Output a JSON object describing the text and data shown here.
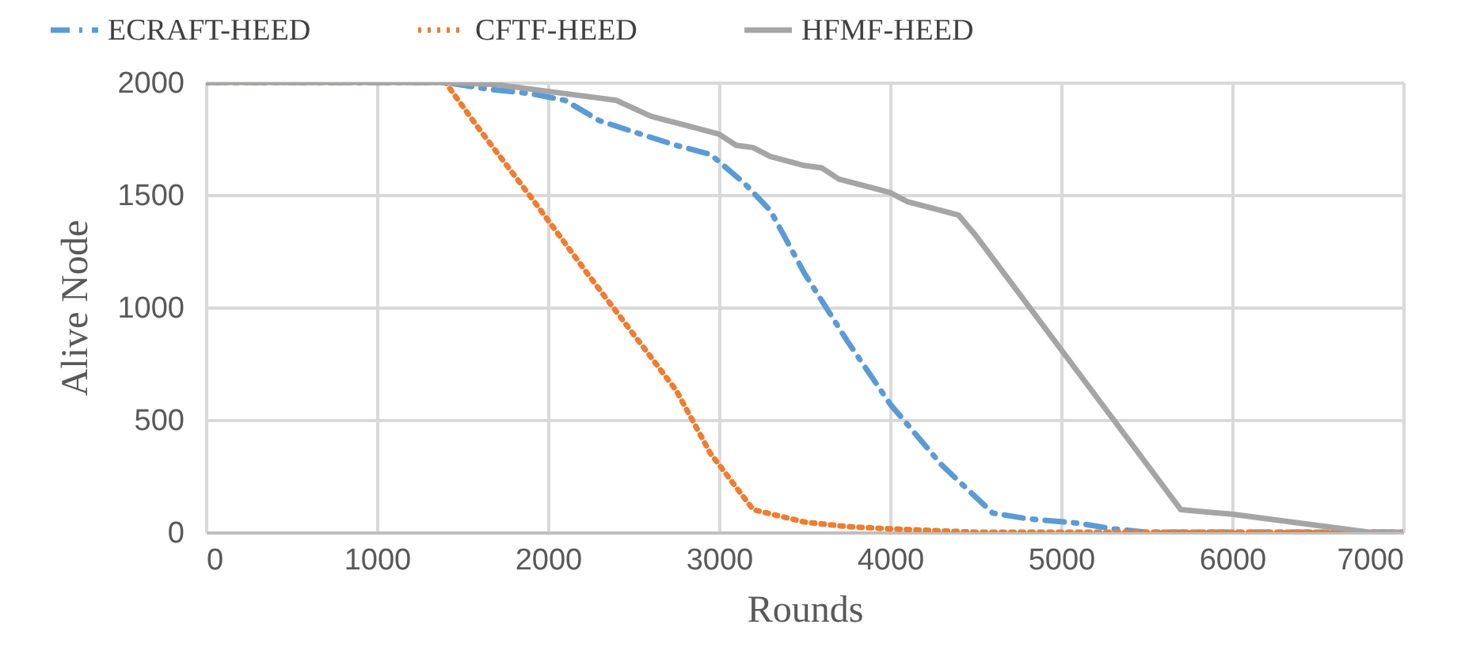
{
  "chart_data": {
    "type": "line",
    "xlabel": "Rounds",
    "ylabel": "Alive Node",
    "xlim": [
      0,
      7000
    ],
    "xticks": [
      0,
      1000,
      2000,
      3000,
      4000,
      5000,
      6000,
      7000
    ],
    "ylim": [
      0,
      2000
    ],
    "yticks": [
      0,
      500,
      1000,
      1500,
      2000
    ],
    "grid": true,
    "legend": "top",
    "marker": "none",
    "series": [
      {
        "name": "ECRAFT-HEED",
        "color": "#5b9bd5",
        "line_style": "dashed",
        "x": [
          0,
          1400,
          1650,
          1900,
          2100,
          2300,
          2500,
          2750,
          2950,
          3150,
          3300,
          3500,
          3750,
          4000,
          4300,
          4600,
          4800,
          5100,
          5300,
          5500,
          7000
        ],
        "values": [
          2000,
          2000,
          1970,
          1950,
          1920,
          1830,
          1780,
          1720,
          1680,
          1550,
          1430,
          1150,
          850,
          570,
          300,
          85,
          60,
          40,
          15,
          0,
          0
        ]
      },
      {
        "name": "CFTF-HEED",
        "color": "#ed7d31",
        "line_style": "dotted",
        "x": [
          0,
          1400,
          1600,
          1900,
          2250,
          2550,
          2750,
          2950,
          3100,
          3200,
          3500,
          3750,
          4000,
          4500,
          7000
        ],
        "values": [
          2000,
          2000,
          1790,
          1490,
          1130,
          830,
          630,
          350,
          200,
          100,
          45,
          25,
          15,
          0,
          0
        ]
      },
      {
        "name": "HFMF-HEED",
        "color": "#a5a5a5",
        "line_style": "solid",
        "x": [
          0,
          1400,
          1700,
          2000,
          2400,
          2600,
          2700,
          2800,
          3000,
          3100,
          3200,
          3300,
          3500,
          3600,
          3700,
          3900,
          4000,
          4100,
          4300,
          4400,
          4500,
          5700,
          6000,
          6500,
          6800,
          7000
        ],
        "values": [
          2000,
          2000,
          1990,
          1960,
          1920,
          1850,
          1830,
          1810,
          1770,
          1720,
          1710,
          1670,
          1630,
          1620,
          1570,
          1530,
          1510,
          1470,
          1430,
          1410,
          1320,
          100,
          80,
          30,
          0,
          0
        ]
      }
    ]
  }
}
